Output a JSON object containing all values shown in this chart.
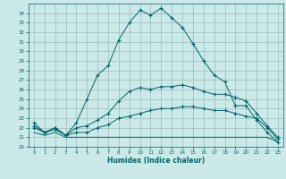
{
  "xlabel": "Humidex (Indice chaleur)",
  "bg_color": "#cce9e9",
  "grid_color": "#99bbbb",
  "line_color": "#006666",
  "xlim": [
    -0.5,
    23.5
  ],
  "ylim": [
    20,
    35
  ],
  "xticks": [
    0,
    1,
    2,
    3,
    4,
    5,
    6,
    7,
    8,
    9,
    10,
    11,
    12,
    13,
    14,
    15,
    16,
    17,
    18,
    19,
    20,
    21,
    22,
    23
  ],
  "yticks": [
    20,
    21,
    22,
    23,
    24,
    25,
    26,
    27,
    28,
    29,
    30,
    31,
    32,
    33,
    34
  ],
  "series": {
    "max": [
      22.5,
      21.5,
      22.0,
      21.2,
      22.5,
      25.0,
      27.5,
      28.5,
      31.2,
      33.0,
      34.3,
      33.8,
      34.5,
      33.5,
      32.5,
      30.8,
      29.0,
      27.5,
      26.8,
      24.3,
      24.3,
      22.8,
      21.5,
      20.5
    ],
    "p75": [
      22.2,
      21.5,
      22.0,
      21.2,
      22.0,
      22.2,
      22.8,
      23.5,
      24.8,
      25.8,
      26.2,
      26.0,
      26.3,
      26.3,
      26.5,
      26.2,
      25.8,
      25.5,
      25.5,
      25.2,
      24.8,
      23.5,
      22.2,
      21.0
    ],
    "avg": [
      22.0,
      21.5,
      21.8,
      21.2,
      21.5,
      21.5,
      22.0,
      22.3,
      23.0,
      23.2,
      23.5,
      23.8,
      24.0,
      24.0,
      24.2,
      24.2,
      24.0,
      23.8,
      23.8,
      23.5,
      23.2,
      23.0,
      22.0,
      20.8
    ],
    "min": [
      21.5,
      21.2,
      21.5,
      21.0,
      21.0,
      21.0,
      21.0,
      21.0,
      21.0,
      21.0,
      21.0,
      21.0,
      21.0,
      21.0,
      21.0,
      21.0,
      21.0,
      21.0,
      21.0,
      21.0,
      21.0,
      21.0,
      21.0,
      20.5
    ]
  }
}
